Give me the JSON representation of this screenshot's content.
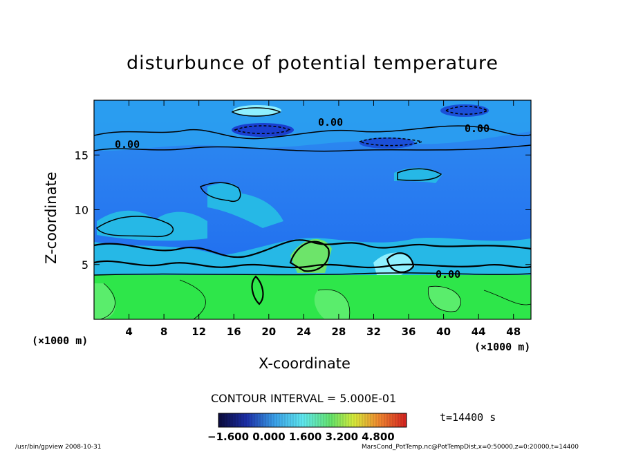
{
  "chart_data": {
    "type": "heatmap",
    "title": "disturbunce of potential temperature",
    "xlabel": "X-coordinate",
    "ylabel": "Z-coordinate",
    "x_unit": "(×1000 m)",
    "y_unit": "(×1000 m)",
    "xlim": [
      0,
      50
    ],
    "ylim": [
      0,
      20
    ],
    "x_ticks": [
      4,
      8,
      12,
      16,
      20,
      24,
      28,
      32,
      36,
      40,
      44,
      48
    ],
    "y_ticks": [
      5,
      10,
      15
    ],
    "contour_labels": [
      "0.00",
      "0.00",
      "0.00",
      "0.00"
    ],
    "contour_interval_text": "CONTOUR INTERVAL = 5.000E-01",
    "colorbar_labels": [
      "−1.600",
      "0.000",
      "1.600",
      "3.200",
      "4.800"
    ],
    "colorbar_range": [
      -1.6,
      6.4
    ],
    "time_label": "t=14400 s",
    "colors": {
      "lower_layer": "#2ee64a",
      "upper_layer": "#1f6ff0",
      "cloud_patches": "#26b8e6",
      "light_patches": "#8ff0ff"
    },
    "footer_left": "/usr/bin/gpview   2008-10-31",
    "footer_right": "MarsCond_PotTemp.nc@PotTempDist,x=0:50000,z=0:20000,t=14400"
  }
}
